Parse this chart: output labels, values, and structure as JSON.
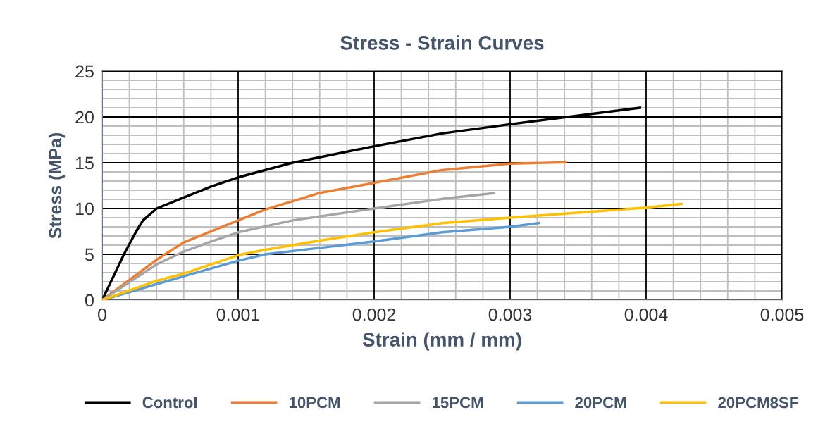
{
  "chart_data": {
    "type": "line",
    "title": "Stress - Strain Curves",
    "xlabel": "Strain (mm / mm)",
    "ylabel": "Stress (MPa)",
    "series": [
      {
        "name": "Control",
        "color": "#000000",
        "x": [
          0,
          0.00016,
          0.00025,
          0.0003,
          0.0004,
          0.0006,
          0.0008,
          0.001,
          0.0014,
          0.002,
          0.0025,
          0.003,
          0.003955
        ],
        "values": [
          0,
          5,
          7.5,
          8.7,
          10,
          11.2,
          12.4,
          13.4,
          15.0,
          16.8,
          18.2,
          19.2,
          21.0
        ]
      },
      {
        "name": "10PCM",
        "color": "#ed7d31",
        "x": [
          0,
          0.0004,
          0.0006,
          0.001,
          0.0012,
          0.0016,
          0.002,
          0.0025,
          0.003,
          0.00341
        ],
        "values": [
          0,
          4.4,
          6.3,
          8.7,
          9.9,
          11.7,
          12.8,
          14.2,
          14.9,
          15.05
        ]
      },
      {
        "name": "15PCM",
        "color": "#a5a5a5",
        "x": [
          0,
          0.0004,
          0.0006,
          0.0008,
          0.001,
          0.0014,
          0.002,
          0.0025,
          0.00288
        ],
        "values": [
          0,
          3.9,
          5.3,
          6.4,
          7.4,
          8.7,
          10.0,
          11.05,
          11.67
        ]
      },
      {
        "name": "20PCM",
        "color": "#5b9bd5",
        "x": [
          0,
          0.0004,
          0.0006,
          0.001,
          0.0012,
          0.0016,
          0.002,
          0.0025,
          0.003,
          0.00321
        ],
        "values": [
          0,
          1.75,
          2.6,
          4.3,
          5.0,
          5.7,
          6.4,
          7.4,
          8.0,
          8.4
        ]
      },
      {
        "name": "20PCM8SF",
        "color": "#ffc000",
        "x": [
          0,
          0.0004,
          0.0006,
          0.001,
          0.0012,
          0.0016,
          0.002,
          0.0025,
          0.003,
          0.004,
          0.00426
        ],
        "values": [
          0,
          2.1,
          2.9,
          4.9,
          5.5,
          6.5,
          7.4,
          8.4,
          9.0,
          10.1,
          10.5
        ]
      }
    ],
    "xlim": [
      0,
      0.005
    ],
    "ylim": [
      0,
      25
    ],
    "xticks": [
      0,
      {
        "value": 0.0002,
        "label": null
      },
      {
        "value": 0.0004,
        "label": null
      },
      {
        "value": 0.0006,
        "label": null
      },
      {
        "value": 0.0008,
        "label": null
      },
      0.001,
      {
        "value": 0.0012,
        "label": null
      },
      {
        "value": 0.0014,
        "label": null
      },
      {
        "value": 0.0016,
        "label": null
      },
      {
        "value": 0.0018,
        "label": null
      },
      0.002,
      {
        "value": 0.0022,
        "label": null
      },
      {
        "value": 0.0024,
        "label": null
      },
      {
        "value": 0.0026,
        "label": null
      },
      {
        "value": 0.0028,
        "label": null
      },
      0.003,
      {
        "value": 0.0032,
        "label": null
      },
      {
        "value": 0.0034,
        "label": null
      },
      {
        "value": 0.0036,
        "label": null
      },
      {
        "value": 0.0038,
        "label": null
      },
      0.004,
      {
        "value": 0.0042,
        "label": null
      },
      {
        "value": 0.0044,
        "label": null
      },
      {
        "value": 0.0046,
        "label": null
      },
      {
        "value": 0.0048,
        "label": null
      },
      0.005
    ],
    "yticks": [
      0,
      {
        "value": 1,
        "label": null
      },
      {
        "value": 2,
        "label": null
      },
      {
        "value": 3,
        "label": null
      },
      {
        "value": 4,
        "label": null
      },
      5,
      {
        "value": 6,
        "label": null
      },
      {
        "value": 7,
        "label": null
      },
      {
        "value": 8,
        "label": null
      },
      {
        "value": 9,
        "label": null
      },
      10,
      {
        "value": 11,
        "label": null
      },
      {
        "value": 12,
        "label": null
      },
      {
        "value": 13,
        "label": null
      },
      {
        "value": 14,
        "label": null
      },
      15,
      {
        "value": 16,
        "label": null
      },
      {
        "value": 17,
        "label": null
      },
      {
        "value": 18,
        "label": null
      },
      {
        "value": 19,
        "label": null
      },
      20,
      {
        "value": 21,
        "label": null
      },
      {
        "value": 22,
        "label": null
      },
      {
        "value": 23,
        "label": null
      },
      {
        "value": 24,
        "label": null
      },
      25
    ],
    "grid": true,
    "legend": "bottom",
    "marker": "none",
    "line_style": "solid"
  }
}
